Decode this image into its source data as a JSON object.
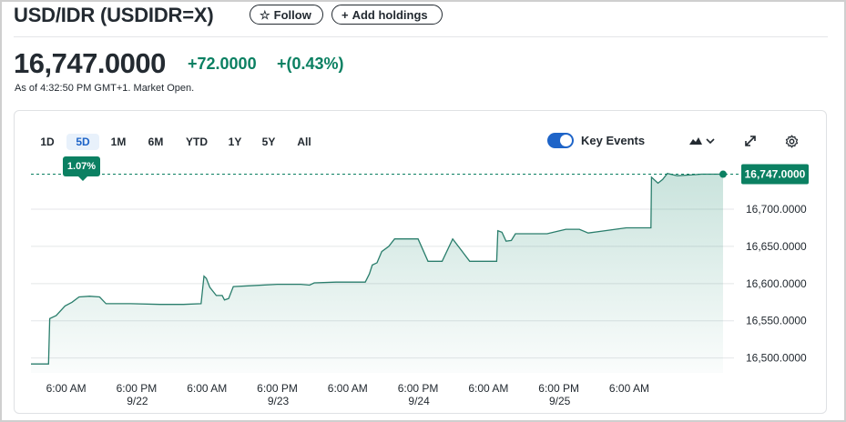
{
  "header": {
    "title": "USD/IDR (USDIDR=X)",
    "follow_label": "Follow",
    "add_holdings_label": "Add holdings"
  },
  "quote": {
    "price": "16,747.0000",
    "change": "+72.0000",
    "change_pct": "+(0.43%)",
    "as_of": "As of 4:32:50 PM GMT+1. Market Open."
  },
  "ranges": [
    {
      "label": "1D",
      "active": false
    },
    {
      "label": "5D",
      "active": true
    },
    {
      "label": "1M",
      "active": false
    },
    {
      "label": "6M",
      "active": false
    },
    {
      "label": "YTD",
      "active": false
    },
    {
      "label": "1Y",
      "active": false
    },
    {
      "label": "5Y",
      "active": false
    },
    {
      "label": "All",
      "active": false
    }
  ],
  "range_change_badge": "1.07%",
  "key_events": {
    "label": "Key Events",
    "enabled": true
  },
  "icons": {
    "star": "star-icon",
    "plus": "plus-icon",
    "chart_type": "mountain-chart-icon",
    "expand": "expand-icon",
    "settings": "gear-icon"
  },
  "colors": {
    "positive": "#0b8062",
    "line": "#2a7e6c",
    "accent": "#1e64c8"
  },
  "chart_data": {
    "type": "area",
    "current_value_label": "16,747.0000",
    "y_ticks": [
      "16,500.0000",
      "16,550.0000",
      "16,600.0000",
      "16,650.0000",
      "16,700.0000"
    ],
    "y_tick_values": [
      16500,
      16550,
      16600,
      16650,
      16700
    ],
    "ylim": [
      16480,
      16755
    ],
    "x_tick_labels": [
      {
        "time": "6:00 AM",
        "date": ""
      },
      {
        "time": "6:00 PM",
        "date": "9/22"
      },
      {
        "time": "6:00 AM",
        "date": ""
      },
      {
        "time": "6:00 PM",
        "date": "9/23"
      },
      {
        "time": "6:00 AM",
        "date": ""
      },
      {
        "time": "6:00 PM",
        "date": "9/24"
      },
      {
        "time": "6:00 AM",
        "date": ""
      },
      {
        "time": "6:00 PM",
        "date": "9/25"
      },
      {
        "time": "6:00 AM",
        "date": ""
      }
    ],
    "x_tick_hours": [
      6,
      18,
      30,
      42,
      54,
      66,
      78,
      90,
      102
    ],
    "x_range_hours": [
      0,
      118
    ],
    "grid": true,
    "points": [
      [
        0,
        16492
      ],
      [
        3,
        16492
      ],
      [
        3.2,
        16553
      ],
      [
        4.3,
        16557
      ],
      [
        5.8,
        16570
      ],
      [
        7,
        16575
      ],
      [
        8.2,
        16582
      ],
      [
        10,
        16583
      ],
      [
        11.7,
        16582
      ],
      [
        12.8,
        16573
      ],
      [
        17,
        16573
      ],
      [
        22,
        16572
      ],
      [
        26,
        16572
      ],
      [
        29,
        16573
      ],
      [
        29.5,
        16610
      ],
      [
        29.9,
        16607
      ],
      [
        30.5,
        16595
      ],
      [
        31.6,
        16584
      ],
      [
        32.6,
        16584
      ],
      [
        33,
        16578
      ],
      [
        33.7,
        16580
      ],
      [
        34.5,
        16596
      ],
      [
        37,
        16597
      ],
      [
        42,
        16599
      ],
      [
        46,
        16599
      ],
      [
        47.5,
        16598
      ],
      [
        48.3,
        16601
      ],
      [
        52,
        16602
      ],
      [
        56,
        16602
      ],
      [
        57,
        16602
      ],
      [
        57.7,
        16613
      ],
      [
        58.2,
        16625
      ],
      [
        59,
        16628
      ],
      [
        59.8,
        16643
      ],
      [
        61,
        16650
      ],
      [
        62,
        16660
      ],
      [
        64,
        16660
      ],
      [
        66,
        16660
      ],
      [
        67.7,
        16630
      ],
      [
        70.1,
        16630
      ],
      [
        71.9,
        16660
      ],
      [
        74.8,
        16630
      ],
      [
        77.6,
        16630
      ],
      [
        79.4,
        16630
      ],
      [
        79.6,
        16671
      ],
      [
        80.3,
        16669
      ],
      [
        81,
        16657
      ],
      [
        81.9,
        16658
      ],
      [
        82.6,
        16667
      ],
      [
        88,
        16667
      ],
      [
        91.2,
        16673
      ],
      [
        93.5,
        16673
      ],
      [
        95,
        16668
      ],
      [
        101.5,
        16675
      ],
      [
        104,
        16675
      ],
      [
        105.7,
        16675
      ],
      [
        105.8,
        16743
      ],
      [
        106.9,
        16735
      ],
      [
        107.7,
        16740
      ],
      [
        108.5,
        16748
      ],
      [
        110.2,
        16745
      ],
      [
        112.4,
        16746
      ],
      [
        114.3,
        16747
      ],
      [
        118,
        16747
      ]
    ]
  }
}
